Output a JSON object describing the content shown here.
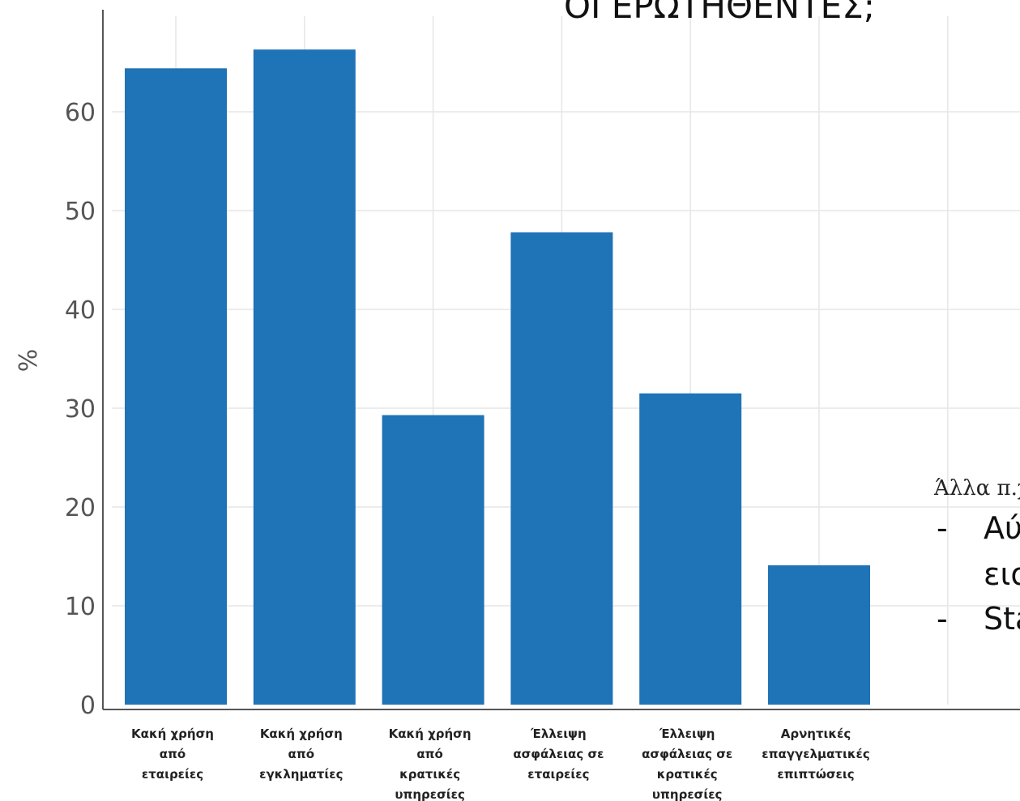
{
  "chart_data": {
    "type": "bar",
    "title": "ΟΙ ΕΡΩΤΗΘΕΝΤΕΣ;",
    "xlabel": "",
    "ylabel": "%",
    "ylim": [
      0,
      66
    ],
    "yticks": [
      0,
      10,
      20,
      30,
      40,
      50,
      60
    ],
    "grid": true,
    "categories": [
      "Κακή χρήση από εταιρείες",
      "Κακή χρήση από εγκληματίες",
      "Κακή χρήση από κρατικές υπηρεσίες",
      "Έλλειψη ασφάλειας σε εταιρείες",
      "Έλλειψη ασφάλειας σε κρατικές υπηρεσίες",
      "Αρνητικές επαγγελματικές επιπτώσεις"
    ],
    "category_lines": [
      [
        "Κακή χρήση",
        "από",
        "εταιρείες"
      ],
      [
        "Κακή χρήση",
        "από",
        "εγκληματίες"
      ],
      [
        "Κακή χρήση",
        "από",
        "κρατικές",
        "υπηρεσίες"
      ],
      [
        "Έλλειψη",
        "ασφάλειας σε",
        "εταιρείες"
      ],
      [
        "Έλλειψη",
        "ασφάλειας σε",
        "κρατικές",
        "υπηρεσίες"
      ],
      [
        "Αρνητικές",
        "επαγγελματικές",
        "επιπτώσεις"
      ]
    ],
    "values": [
      64.4,
      66.3,
      29.3,
      47.8,
      31.5,
      14.1
    ],
    "bar_color": "#1f73b7"
  },
  "side_note": {
    "label": "Άλλα π.χ",
    "lines": [
      {
        "bullet": "-",
        "text": "Αύ"
      },
      {
        "bullet": "",
        "text": "ειο"
      },
      {
        "bullet": "-",
        "text": "Sta"
      }
    ]
  },
  "colors": {
    "grid": "#e6e6e6",
    "axis": "#555555"
  }
}
